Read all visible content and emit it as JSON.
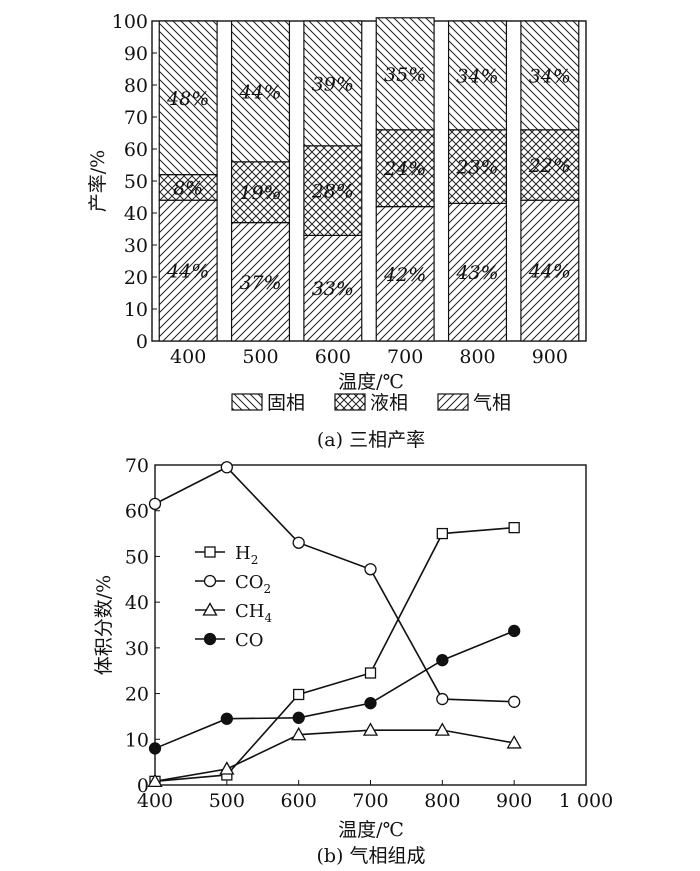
{
  "chart_data": [
    {
      "type": "bar",
      "stacked": true,
      "caption": "(a) 三相产率",
      "xlabel": "温度/℃",
      "ylabel": "产率/%",
      "ylim": [
        0,
        100
      ],
      "yticks": [
        0,
        10,
        20,
        30,
        40,
        50,
        60,
        70,
        80,
        90,
        100
      ],
      "categories": [
        "400",
        "500",
        "600",
        "700",
        "800",
        "900"
      ],
      "series": [
        {
          "name": "气相",
          "values": [
            44,
            37,
            33,
            42,
            43,
            44
          ],
          "labels": [
            "44%",
            "37%",
            "33%",
            "42%",
            "43%",
            "44%"
          ],
          "pattern": "diagonal-forward"
        },
        {
          "name": "液相",
          "values": [
            8,
            19,
            28,
            24,
            23,
            22
          ],
          "labels": [
            "8%",
            "19%",
            "28%",
            "24%",
            "23%",
            "22%"
          ],
          "pattern": "crosshatch"
        },
        {
          "name": "固相",
          "values": [
            48,
            44,
            39,
            35,
            34,
            34
          ],
          "labels": [
            "48%",
            "44%",
            "39%",
            "35%",
            "34%",
            "34%"
          ],
          "pattern": "diagonal-back"
        }
      ],
      "legend": {
        "placement": "bottom",
        "order": [
          "固相",
          "液相",
          "气相"
        ]
      }
    },
    {
      "type": "line",
      "caption": "(b) 气相组成",
      "xlabel": "温度/℃",
      "ylabel": "体积分数/%",
      "xlim": [
        400,
        1000
      ],
      "ylim": [
        0,
        70
      ],
      "xticks": [
        400,
        500,
        600,
        700,
        800,
        900
      ],
      "xtick_last": "1 000",
      "yticks": [
        0,
        10,
        20,
        30,
        40,
        50,
        60,
        70
      ],
      "x": [
        400,
        500,
        600,
        700,
        800,
        900
      ],
      "series": [
        {
          "name": "H",
          "sub": "2",
          "marker": "square-open",
          "values": [
            0.8,
            2.2,
            19.8,
            24.5,
            55,
            56.3
          ]
        },
        {
          "name": "CO",
          "sub": "2",
          "marker": "circle-open",
          "values": [
            61.5,
            69.5,
            53,
            47.2,
            18.8,
            18.2
          ]
        },
        {
          "name": "CH",
          "sub": "4",
          "marker": "triangle-open",
          "values": [
            0.8,
            3.5,
            11,
            12,
            12,
            9.2
          ]
        },
        {
          "name": "CO",
          "sub": "",
          "marker": "circle-filled",
          "values": [
            8,
            14.5,
            14.7,
            17.9,
            27.3,
            33.7
          ]
        }
      ],
      "legend": {
        "placement": "top-left"
      }
    }
  ]
}
